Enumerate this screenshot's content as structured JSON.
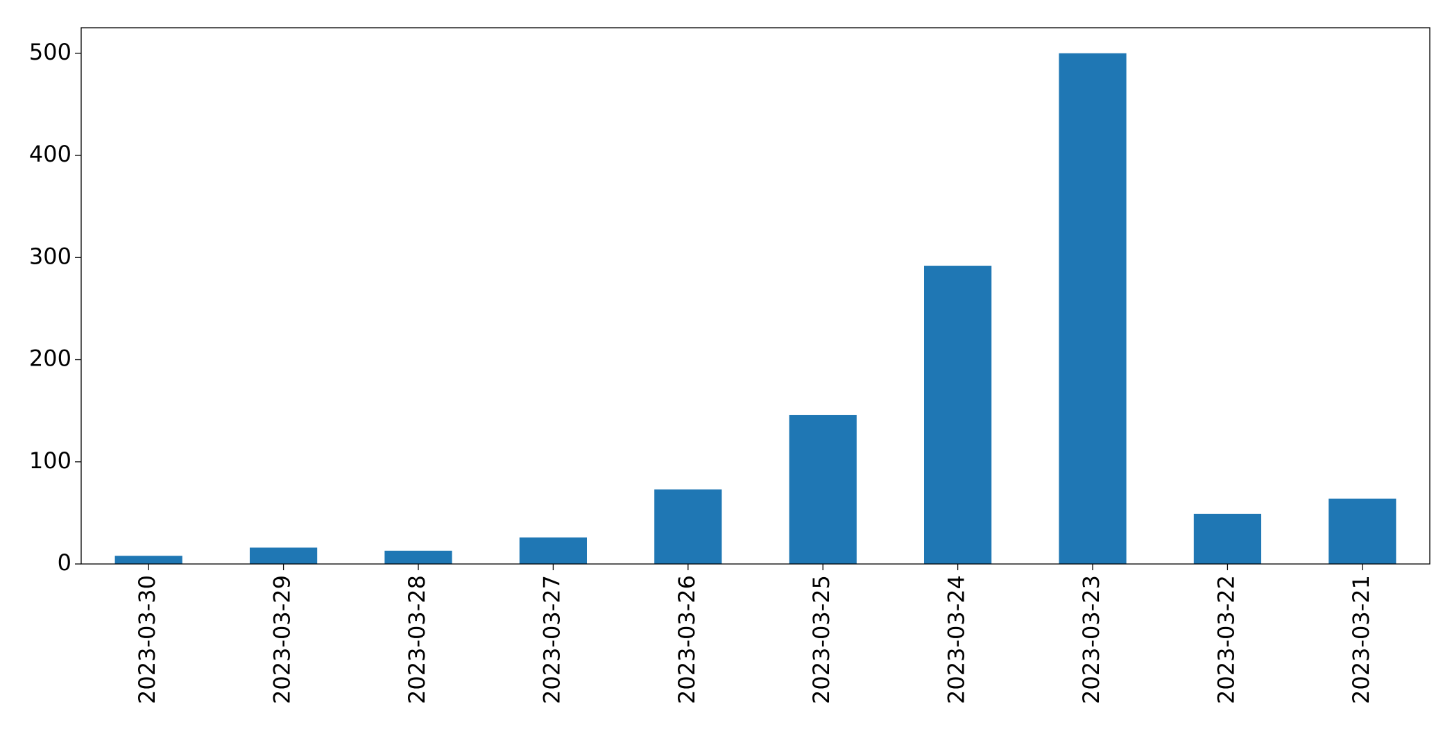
{
  "chart_data": {
    "type": "bar",
    "categories": [
      "2023-03-30",
      "2023-03-29",
      "2023-03-28",
      "2023-03-27",
      "2023-03-26",
      "2023-03-25",
      "2023-03-24",
      "2023-03-23",
      "2023-03-22",
      "2023-03-21"
    ],
    "values": [
      8,
      16,
      13,
      26,
      73,
      146,
      292,
      500,
      49,
      64
    ],
    "color": "#1f77b4",
    "ylim": [
      0,
      525
    ],
    "yticks": [
      0,
      100,
      200,
      300,
      400,
      500
    ],
    "grid": false
  }
}
